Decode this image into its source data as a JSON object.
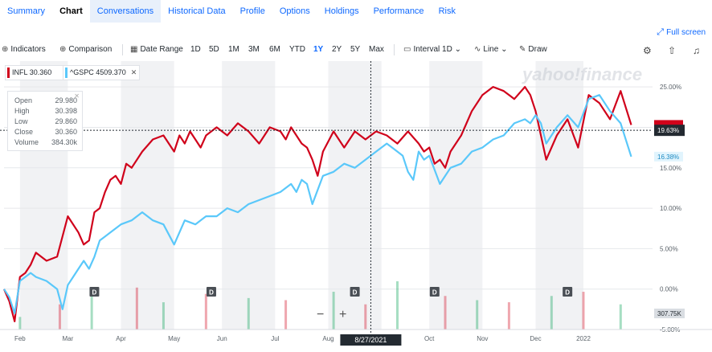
{
  "tabs": [
    {
      "label": "Summary",
      "state": "normal"
    },
    {
      "label": "Chart",
      "state": "active"
    },
    {
      "label": "Conversations",
      "state": "hl"
    },
    {
      "label": "Historical Data",
      "state": "normal"
    },
    {
      "label": "Profile",
      "state": "normal"
    },
    {
      "label": "Options",
      "state": "normal"
    },
    {
      "label": "Holdings",
      "state": "normal"
    },
    {
      "label": "Performance",
      "state": "normal"
    },
    {
      "label": "Risk",
      "state": "normal"
    }
  ],
  "fullscreen_label": "Full screen",
  "toolbar": {
    "indicators_label": "Indicators",
    "comparison_label": "Comparison",
    "date_range_label": "Date Range",
    "ranges": [
      "1D",
      "5D",
      "1M",
      "3M",
      "6M",
      "YTD",
      "1Y",
      "2Y",
      "5Y",
      "Max"
    ],
    "selected_range": "1Y",
    "interval_label": "Interval",
    "interval_value": "1D",
    "chart_type_label": "Line",
    "draw_label": "Draw"
  },
  "legend": [
    {
      "symbol": "INFL",
      "value": "30.360",
      "color": "#d0021b"
    },
    {
      "symbol": "^GSPC",
      "value": "4509.370",
      "color": "#5ac8fa"
    }
  ],
  "ohlc": {
    "open_label": "Open",
    "open": "29.980",
    "high_label": "High",
    "high": "30.398",
    "low_label": "Low",
    "low": "29.860",
    "close_label": "Close",
    "close": "30.360",
    "volume_label": "Volume",
    "volume": "384.30k"
  },
  "watermark": "yahoo!finance",
  "zoom": {
    "minus": "−",
    "plus": "+"
  },
  "colors": {
    "infl": "#d0021b",
    "gspc": "#5ac8fa",
    "accent": "#0f69ff",
    "band": "#f1f2f4"
  },
  "chart_data": {
    "type": "line",
    "y_unit": "%",
    "ylim": [
      -5,
      27
    ],
    "y_ticks": [
      "25.00%",
      "20.00%",
      "15.00%",
      "10.00%",
      "5.00%",
      "0.00%",
      "-5.00%"
    ],
    "y_tick_values": [
      25,
      20,
      15,
      10,
      5,
      0,
      -5
    ],
    "x_range": [
      0,
      12.2
    ],
    "x_ticks": [
      "Feb",
      "Mar",
      "Apr",
      "May",
      "Jun",
      "Jul",
      "Aug",
      "Sep",
      "Oct",
      "Nov",
      "Dec",
      "2022"
    ],
    "x_tick_values": [
      0.3,
      1.2,
      2.2,
      3.2,
      4.1,
      5.1,
      6.1,
      7.1,
      8.0,
      9.0,
      10.0,
      10.9
    ],
    "crosshair": {
      "x": 6.9,
      "y": 19.63,
      "x_label": "8/27/2021",
      "y_label": "19.63%"
    },
    "last_labels": [
      {
        "series": "INFL",
        "value": 20.3
      },
      {
        "series": "^GSPC",
        "value": 16.38,
        "text": "16.38%"
      }
    ],
    "series": [
      {
        "name": "INFL",
        "color": "#d0021b",
        "x": [
          0,
          0.1,
          0.2,
          0.3,
          0.4,
          0.5,
          0.6,
          0.8,
          1.0,
          1.2,
          1.4,
          1.5,
          1.6,
          1.7,
          1.8,
          1.9,
          2.0,
          2.1,
          2.2,
          2.3,
          2.4,
          2.6,
          2.8,
          3.0,
          3.1,
          3.2,
          3.3,
          3.4,
          3.5,
          3.6,
          3.7,
          3.8,
          4.0,
          4.2,
          4.4,
          4.6,
          4.8,
          5.0,
          5.2,
          5.3,
          5.4,
          5.5,
          5.6,
          5.7,
          5.8,
          5.9,
          6.0,
          6.2,
          6.4,
          6.6,
          6.8,
          6.9,
          7.0,
          7.2,
          7.4,
          7.6,
          7.8,
          7.9,
          8.0,
          8.1,
          8.2,
          8.3,
          8.4,
          8.6,
          8.8,
          9.0,
          9.2,
          9.4,
          9.6,
          9.8,
          9.9,
          10.0,
          10.1,
          10.2,
          10.4,
          10.6,
          10.8,
          11.0,
          11.2,
          11.4,
          11.6,
          11.8
        ],
        "y": [
          0.0,
          -1.5,
          -4.0,
          1.5,
          2.0,
          3.0,
          4.5,
          3.5,
          4.0,
          9.0,
          7.0,
          5.5,
          6.0,
          9.5,
          10.0,
          12.0,
          13.5,
          14.0,
          13.0,
          15.5,
          15.0,
          17.0,
          18.5,
          19.0,
          18.0,
          17.0,
          19.0,
          18.0,
          19.5,
          18.5,
          17.5,
          19.0,
          20.0,
          19.0,
          20.5,
          19.5,
          18.0,
          20.0,
          19.5,
          18.5,
          20.0,
          19.0,
          18.0,
          17.5,
          16.0,
          14.0,
          17.0,
          19.5,
          17.5,
          19.5,
          18.5,
          19.0,
          19.5,
          19.0,
          18.0,
          19.5,
          18.0,
          17.0,
          17.5,
          15.5,
          16.0,
          15.0,
          17.0,
          19.0,
          22.0,
          24.0,
          25.0,
          24.5,
          23.5,
          25.0,
          24.0,
          22.0,
          19.0,
          16.0,
          19.0,
          21.0,
          17.5,
          24.0,
          23.0,
          21.0,
          24.5,
          20.3
        ]
      },
      {
        "name": "^GSPC",
        "color": "#5ac8fa",
        "x": [
          0,
          0.1,
          0.2,
          0.3,
          0.4,
          0.5,
          0.6,
          0.8,
          1.0,
          1.1,
          1.2,
          1.3,
          1.4,
          1.5,
          1.6,
          1.7,
          1.8,
          2.0,
          2.2,
          2.4,
          2.6,
          2.8,
          3.0,
          3.2,
          3.4,
          3.6,
          3.8,
          4.0,
          4.2,
          4.4,
          4.6,
          4.8,
          5.0,
          5.2,
          5.4,
          5.5,
          5.6,
          5.7,
          5.8,
          6.0,
          6.2,
          6.4,
          6.6,
          6.8,
          7.0,
          7.2,
          7.4,
          7.5,
          7.6,
          7.7,
          7.8,
          7.9,
          8.0,
          8.2,
          8.4,
          8.6,
          8.8,
          9.0,
          9.2,
          9.4,
          9.6,
          9.8,
          9.9,
          10.0,
          10.1,
          10.2,
          10.4,
          10.6,
          10.8,
          11.0,
          11.2,
          11.4,
          11.6,
          11.8
        ],
        "y": [
          0.0,
          -1.0,
          -3.0,
          1.0,
          1.5,
          2.0,
          1.5,
          1.0,
          0.0,
          -2.5,
          0.5,
          1.5,
          2.5,
          3.5,
          2.5,
          4.0,
          6.0,
          7.0,
          8.0,
          8.5,
          9.5,
          8.5,
          8.0,
          5.5,
          8.5,
          8.0,
          9.0,
          9.0,
          10.0,
          9.5,
          10.5,
          11.0,
          11.5,
          12.0,
          13.0,
          12.0,
          13.5,
          13.0,
          10.5,
          14.0,
          14.5,
          15.5,
          15.0,
          16.0,
          17.0,
          18.0,
          17.0,
          16.5,
          14.5,
          13.5,
          17.0,
          16.0,
          16.5,
          13.0,
          15.0,
          15.5,
          17.0,
          17.5,
          18.5,
          19.0,
          20.5,
          21.0,
          20.5,
          21.5,
          20.5,
          18.0,
          20.0,
          21.5,
          20.0,
          23.5,
          24.0,
          22.0,
          20.5,
          16.38
        ]
      },
      {
        "name": "Volume",
        "x": [
          0.3,
          1.05,
          1.65,
          2.5,
          3.0,
          3.8,
          4.6,
          5.3,
          6.2,
          6.8,
          7.4,
          8.3,
          8.9,
          9.5,
          10.3,
          10.9,
          11.6
        ],
        "y": [
          60,
          120,
          190,
          200,
          130,
          170,
          150,
          140,
          180,
          120,
          230,
          160,
          140,
          130,
          160,
          180,
          120
        ]
      }
    ],
    "event_markers": {
      "label": "D",
      "x": [
        1.7,
        3.9,
        6.6,
        8.1,
        10.6
      ]
    },
    "volume_label": "307.75K"
  }
}
